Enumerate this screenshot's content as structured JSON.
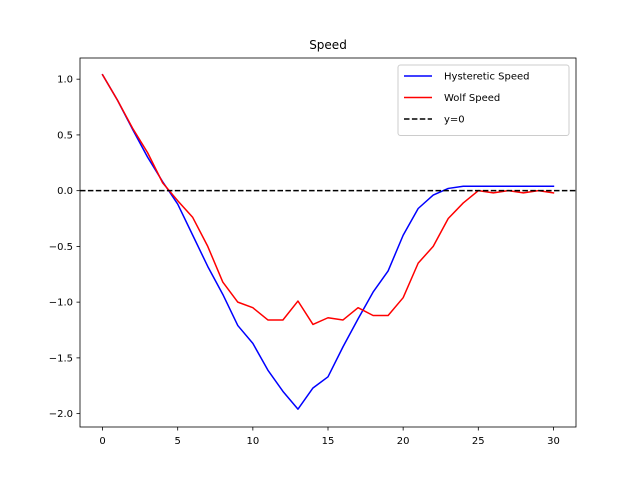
{
  "chart_data": {
    "type": "line",
    "title": "Speed",
    "xlabel": "",
    "ylabel": "",
    "xlim": [
      -1.5,
      31.5
    ],
    "ylim": [
      -2.12,
      1.19
    ],
    "xticks": [
      0,
      5,
      10,
      15,
      20,
      25,
      30
    ],
    "yticks": [
      -2.0,
      -1.5,
      -1.0,
      -0.5,
      0.0,
      0.5,
      1.0
    ],
    "x": [
      0,
      1,
      2,
      3,
      4,
      5,
      6,
      7,
      8,
      9,
      10,
      11,
      12,
      13,
      14,
      15,
      16,
      17,
      18,
      19,
      20,
      21,
      22,
      23,
      24,
      25,
      26,
      27,
      28,
      29,
      30
    ],
    "series": [
      {
        "name": "Hysteretic Speed",
        "color": "#0000ff",
        "style": "solid",
        "values": [
          1.04,
          0.81,
          0.55,
          0.3,
          0.08,
          -0.12,
          -0.4,
          -0.68,
          -0.93,
          -1.21,
          -1.37,
          -1.61,
          -1.8,
          -1.96,
          -1.77,
          -1.67,
          -1.4,
          -1.15,
          -0.91,
          -0.72,
          -0.4,
          -0.16,
          -0.04,
          0.02,
          0.04,
          0.04,
          0.04,
          0.04,
          0.04,
          0.04,
          0.04
        ]
      },
      {
        "name": "Wolf Speed",
        "color": "#ff0000",
        "style": "solid",
        "values": [
          1.04,
          0.81,
          0.56,
          0.34,
          0.07,
          -0.09,
          -0.24,
          -0.5,
          -0.82,
          -1.0,
          -1.05,
          -1.16,
          -1.16,
          -0.99,
          -1.2,
          -1.14,
          -1.16,
          -1.05,
          -1.12,
          -1.12,
          -0.96,
          -0.65,
          -0.5,
          -0.25,
          -0.11,
          0.0,
          -0.02,
          0.0,
          -0.02,
          0.0,
          -0.02
        ]
      }
    ],
    "hlines": [
      {
        "name": "y=0",
        "y": 0,
        "color": "#000000",
        "style": "dashed"
      }
    ],
    "legend_position": "top-right",
    "grid": false
  }
}
